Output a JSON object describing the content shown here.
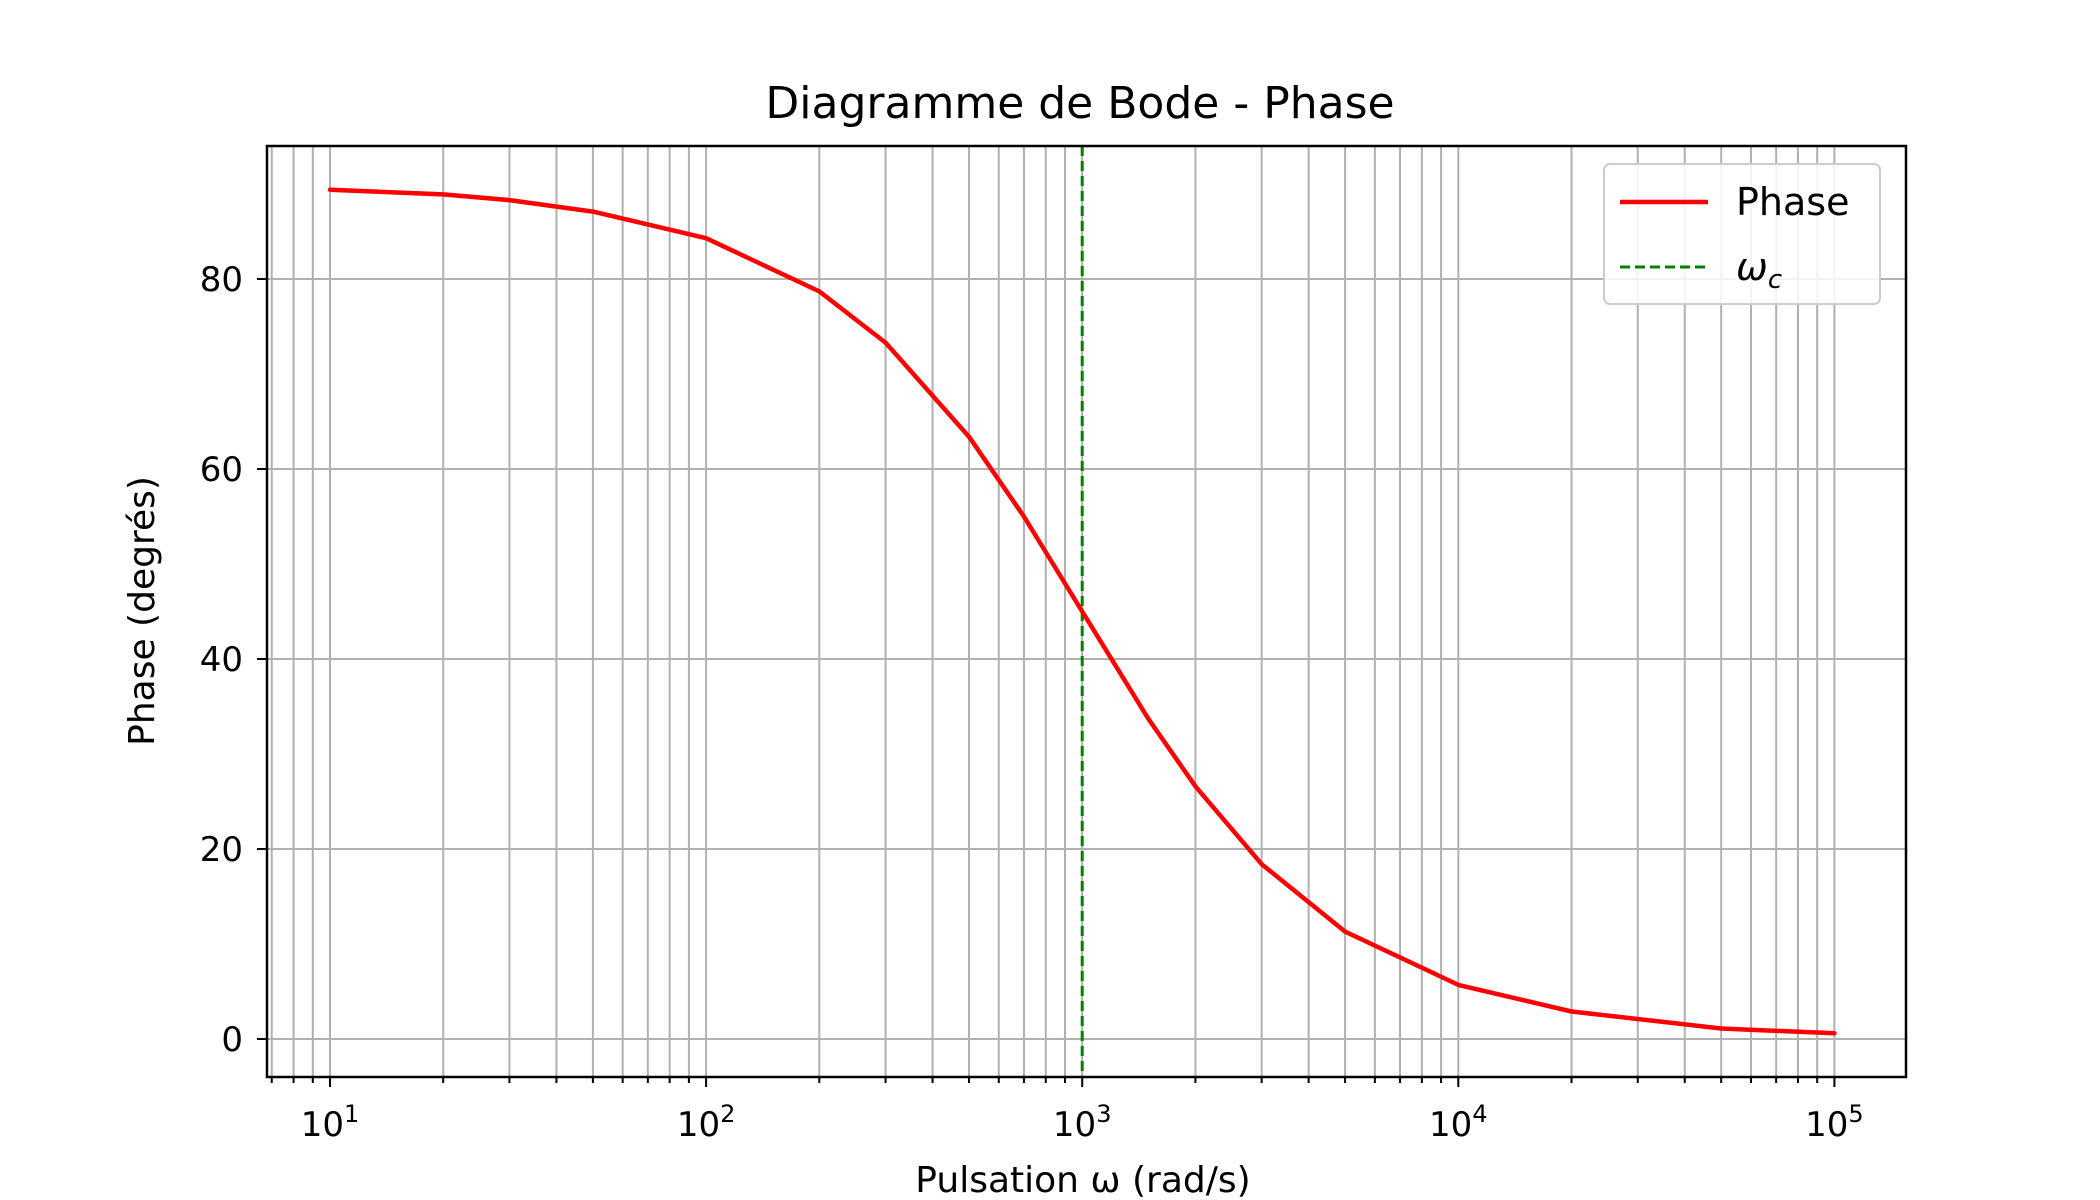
{
  "chart_data": {
    "type": "line",
    "title": "Diagramme de Bode - Phase",
    "xlabel": "Pulsation ω (rad/s)",
    "ylabel": "Phase (degrés)",
    "xscale": "log",
    "xlim": [
      6.8,
      155000
    ],
    "ylim": [
      -4,
      94
    ],
    "grid": true,
    "grid_minor_x": true,
    "legend_position": "top-right",
    "xticks": [
      {
        "value": 10,
        "base": "10",
        "exp": "1"
      },
      {
        "value": 100,
        "base": "10",
        "exp": "2"
      },
      {
        "value": 1000,
        "base": "10",
        "exp": "3"
      },
      {
        "value": 10000,
        "base": "10",
        "exp": "4"
      },
      {
        "value": 100000,
        "base": "10",
        "exp": "5"
      }
    ],
    "yticks": [
      0,
      20,
      40,
      60,
      80
    ],
    "ytick_labels": [
      "0",
      "20",
      "40",
      "60",
      "80"
    ],
    "series": [
      {
        "name": "Phase",
        "color": "#ff0000",
        "style": "solid",
        "x": [
          10,
          20,
          30,
          50,
          100,
          200,
          300,
          500,
          700,
          1000,
          1500,
          2000,
          3000,
          5000,
          10000,
          20000,
          50000,
          100000
        ],
        "y": [
          89.4,
          88.9,
          88.3,
          87.1,
          84.3,
          78.7,
          73.3,
          63.4,
          55.0,
          45.0,
          33.7,
          26.6,
          18.4,
          11.3,
          5.7,
          2.9,
          1.1,
          0.6
        ]
      }
    ],
    "vlines": [
      {
        "name": "ω",
        "name_sub": "c",
        "x": 1000,
        "color": "#008000",
        "style": "dashed"
      }
    ]
  }
}
